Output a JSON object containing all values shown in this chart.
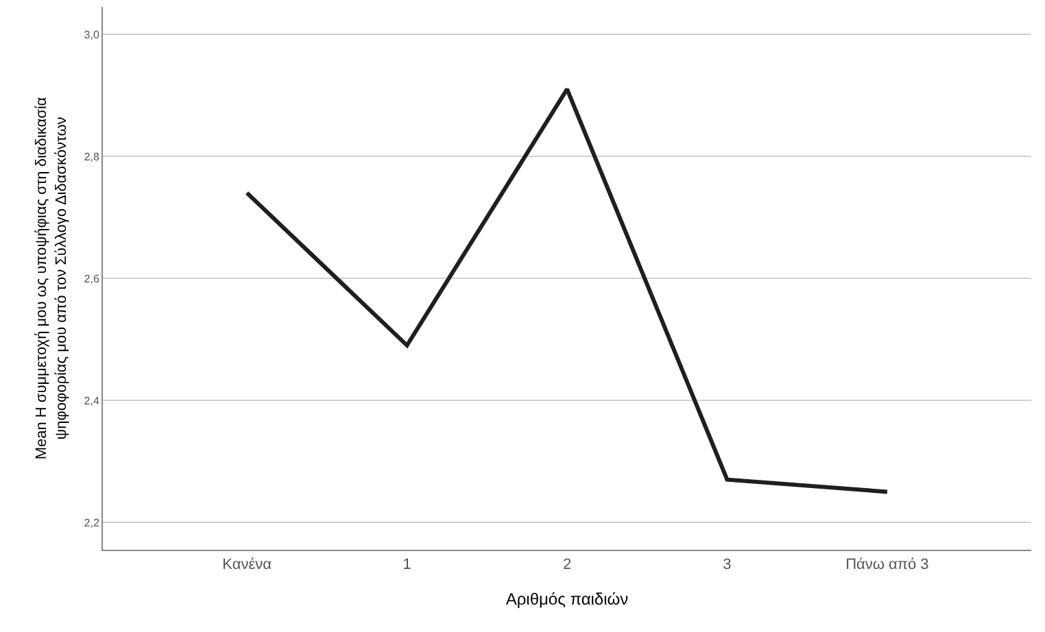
{
  "chart_data": {
    "type": "line",
    "xlabel": "Αριθμός παιδιών",
    "ylabel": "Mean Η συμμετοχή μου ως υποψήφιας στη διαδικασία\nψηφοφορίας μου από τον Σύλλογο Διδασκόντων",
    "categories": [
      "Κανένα",
      "1",
      "2",
      "3",
      "Πάνω από 3"
    ],
    "series": [
      {
        "color": "#1f1f1f",
        "values": [
          2.74,
          2.49,
          2.91,
          2.27,
          2.25
        ]
      }
    ],
    "ylim": [
      2.155,
      3.045
    ],
    "yticks": [
      {
        "value": 2.2,
        "label": "2,2"
      },
      {
        "value": 2.4,
        "label": "2,4"
      },
      {
        "value": 2.6,
        "label": "2,6"
      },
      {
        "value": 2.8,
        "label": "2,8"
      },
      {
        "value": 3.0,
        "label": "3,0"
      }
    ],
    "grid": "y",
    "marker": "none",
    "line_style": "solid"
  }
}
